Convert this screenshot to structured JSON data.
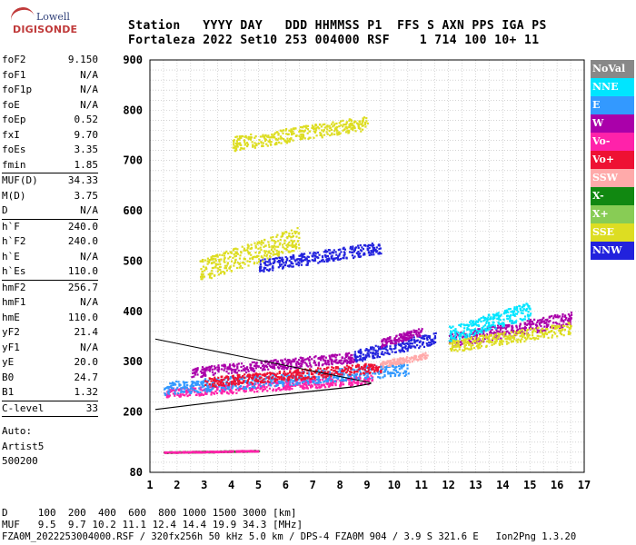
{
  "logo": {
    "line1": "Lowell",
    "line2": "DIGISONDE"
  },
  "header": {
    "row1": "Station   YYYY DAY   DDD HHMMSS P1  FFS S AXN PPS IGA PS",
    "row2": "Fortaleza 2022 Set10 253 004000 RSF    1 714 100 10+ 11"
  },
  "params": [
    {
      "name": "foF2",
      "value": "9.150"
    },
    {
      "name": "foF1",
      "value": "N/A"
    },
    {
      "name": "foF1p",
      "value": "N/A"
    },
    {
      "name": "foE",
      "value": "N/A"
    },
    {
      "name": "foEp",
      "value": "0.52"
    },
    {
      "name": "fxI",
      "value": "9.70"
    },
    {
      "name": "foEs",
      "value": "3.35"
    },
    {
      "name": "fmin",
      "value": "1.85"
    },
    {
      "name": "MUF(D)",
      "value": "34.33"
    },
    {
      "name": "M(D)",
      "value": "3.75"
    },
    {
      "name": "D",
      "value": "N/A"
    },
    {
      "name": "h`F",
      "value": "240.0"
    },
    {
      "name": "h`F2",
      "value": "240.0"
    },
    {
      "name": "h`E",
      "value": "N/A"
    },
    {
      "name": "h`Es",
      "value": "110.0"
    },
    {
      "name": "hmF2",
      "value": "256.7"
    },
    {
      "name": "hmF1",
      "value": "N/A"
    },
    {
      "name": "hmE",
      "value": "110.0"
    },
    {
      "name": "yF2",
      "value": "21.4"
    },
    {
      "name": "yF1",
      "value": "N/A"
    },
    {
      "name": "yE",
      "value": "20.0"
    },
    {
      "name": "B0",
      "value": "24.7"
    },
    {
      "name": "B1",
      "value": "1.32"
    },
    {
      "name": "C-level",
      "value": "33"
    }
  ],
  "auto": {
    "l1": "Auto:",
    "l2": "Artist5",
    "l3": "500200"
  },
  "legend": [
    {
      "label": "NoVal",
      "color": "#888888"
    },
    {
      "label": "NNE",
      "color": "#00e5ff"
    },
    {
      "label": "E",
      "color": "#3399ff"
    },
    {
      "label": "W",
      "color": "#aa00aa"
    },
    {
      "label": "Vo-",
      "color": "#ff22aa"
    },
    {
      "label": "Vo+",
      "color": "#ee1133"
    },
    {
      "label": "SSW",
      "color": "#ffaaaa"
    },
    {
      "label": "X-",
      "color": "#118811"
    },
    {
      "label": "X+",
      "color": "#88cc55"
    },
    {
      "label": "SSE",
      "color": "#dddd22"
    },
    {
      "label": "NNW",
      "color": "#2222dd"
    }
  ],
  "chart_data": {
    "type": "scatter",
    "xlim": [
      1,
      17
    ],
    "ylim": [
      80,
      900
    ],
    "x_ticks": [
      "1",
      "2",
      "3",
      "4",
      "5",
      "6",
      "7",
      "8",
      "9",
      "10",
      "11",
      "12",
      "13",
      "14",
      "15",
      "16",
      "17"
    ],
    "y_ticks": [
      "80",
      "200",
      "300",
      "400",
      "500",
      "600",
      "700",
      "800",
      "900"
    ],
    "grid": true,
    "legend_position": "right",
    "traces": [
      {
        "dir": "Vo-",
        "x0": 1.5,
        "x1": 9.2,
        "h0": 230,
        "h1": 275
      },
      {
        "dir": "E",
        "x0": 1.5,
        "x1": 10.5,
        "h0": 235,
        "h1": 300
      },
      {
        "dir": "W",
        "x0": 2.5,
        "x1": 8.5,
        "h0": 270,
        "h1": 320
      },
      {
        "dir": "Vo+",
        "x0": 3.0,
        "x1": 9.5,
        "h0": 250,
        "h1": 300
      },
      {
        "dir": "NNW",
        "x0": 8.5,
        "x1": 11.5,
        "h0": 300,
        "h1": 360
      },
      {
        "dir": "SSW",
        "x0": 9.5,
        "x1": 11.2,
        "h0": 290,
        "h1": 320
      },
      {
        "dir": "SSE",
        "x0": 4.0,
        "x1": 9.0,
        "h0": 720,
        "h1": 790
      },
      {
        "dir": "NNW",
        "x0": 5.0,
        "x1": 9.5,
        "h0": 480,
        "h1": 540
      },
      {
        "dir": "SSE",
        "x0": 2.8,
        "x1": 6.5,
        "h0": 460,
        "h1": 570
      },
      {
        "dir": "X-",
        "x0": 1.5,
        "x1": 5.0,
        "h0": 120,
        "h1": 125
      },
      {
        "dir": "Vo-",
        "x0": 1.5,
        "x1": 5.0,
        "h0": 120,
        "h1": 125
      },
      {
        "dir": "W",
        "x0": 12.0,
        "x1": 16.5,
        "h0": 330,
        "h1": 400
      },
      {
        "dir": "SSE",
        "x0": 12.0,
        "x1": 16.5,
        "h0": 320,
        "h1": 380
      },
      {
        "dir": "NNE",
        "x0": 12.0,
        "x1": 15.0,
        "h0": 340,
        "h1": 420
      },
      {
        "dir": "W",
        "x0": 9.5,
        "x1": 11.0,
        "h0": 330,
        "h1": 370
      }
    ],
    "model_profile": {
      "x": [
        1.2,
        5.0,
        8.5,
        9.15
      ],
      "h": [
        205,
        230,
        250,
        256.7
      ]
    }
  },
  "freq_table": {
    "row1": "D     100  200  400  600  800 1000 1500 3000 [km]",
    "row2": "MUF   9.5  9.7 10.2 11.1 12.4 14.4 19.9 34.3 [MHz]"
  },
  "footer": "FZA0M_2022253004000.RSF / 320fx256h 50 kHz 5.0 km / DPS-4 FZA0M 904 / 3.9 S 321.6 E   Ion2Png 1.3.20"
}
